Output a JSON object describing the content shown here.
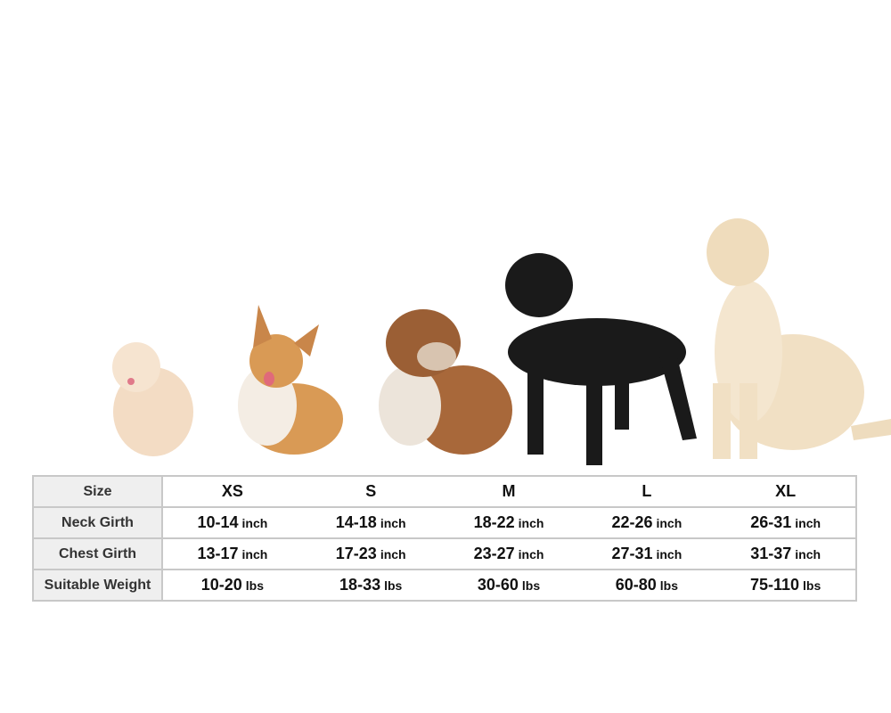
{
  "sizes": [
    "XS",
    "S",
    "M",
    "L",
    "XL"
  ],
  "rows": [
    {
      "label": "Size"
    },
    {
      "label": "Neck Girth",
      "values": [
        [
          "10-14",
          "inch"
        ],
        [
          "14-18",
          "inch"
        ],
        [
          "18-22",
          "inch"
        ],
        [
          "22-26",
          "inch"
        ],
        [
          "26-31",
          "inch"
        ]
      ]
    },
    {
      "label": "Chest Girth",
      "values": [
        [
          "13-17",
          "inch"
        ],
        [
          "17-23",
          "inch"
        ],
        [
          "23-27",
          "inch"
        ],
        [
          "27-31",
          "inch"
        ],
        [
          "31-37",
          "inch"
        ]
      ]
    },
    {
      "label": "Suitable Weight",
      "values": [
        [
          "10-20",
          "lbs"
        ],
        [
          "18-33",
          "lbs"
        ],
        [
          "30-60",
          "lbs"
        ],
        [
          "60-80",
          "lbs"
        ],
        [
          "75-110",
          "lbs"
        ]
      ]
    }
  ],
  "dogs": [
    {
      "breed": "pomeranian",
      "color": "#f3dcc4"
    },
    {
      "breed": "corgi",
      "color": "#d99a55"
    },
    {
      "breed": "bulldog",
      "color": "#a8683a"
    },
    {
      "breed": "staffordshire-terrier",
      "color": "#1a1a1a"
    },
    {
      "breed": "labrador",
      "color": "#f1e0c4"
    }
  ]
}
